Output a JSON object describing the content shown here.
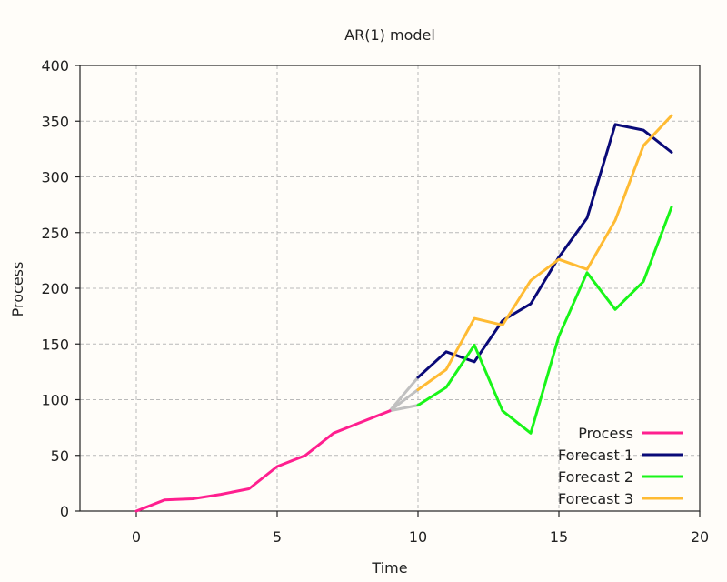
{
  "chart_data": {
    "type": "line",
    "title": "AR(1) model",
    "xlabel": "Time",
    "ylabel": "Process",
    "xlim": [
      -2,
      20
    ],
    "ylim": [
      0,
      400
    ],
    "xticks": [
      0,
      5,
      10,
      15,
      20
    ],
    "yticks": [
      0,
      50,
      100,
      150,
      200,
      250,
      300,
      350,
      400
    ],
    "grid": true,
    "legend_position": "bottom-right",
    "series": [
      {
        "name": "Process",
        "color": "#ff1f8f",
        "x": [
          0,
          1,
          2,
          3,
          4,
          5,
          6,
          7,
          8,
          9
        ],
        "y": [
          0,
          10,
          11,
          15,
          20,
          40,
          50,
          70,
          80,
          90
        ]
      },
      {
        "name": "Forecast 1",
        "color": "#0a0a78",
        "x": [
          10,
          11,
          12,
          13,
          14,
          15,
          16,
          17,
          18,
          19
        ],
        "y": [
          120,
          143,
          134,
          171,
          186,
          228,
          263,
          347,
          342,
          322
        ]
      },
      {
        "name": "Forecast 2",
        "color": "#19f519",
        "x": [
          10,
          11,
          12,
          13,
          14,
          15,
          16,
          17,
          18,
          19
        ],
        "y": [
          95,
          111,
          149,
          90,
          70,
          157,
          214,
          181,
          206,
          273
        ]
      },
      {
        "name": "Forecast 3",
        "color": "#ffbb33",
        "x": [
          10,
          11,
          12,
          13,
          14,
          15,
          16,
          17,
          18,
          19
        ],
        "y": [
          109,
          127,
          173,
          167,
          207,
          226,
          217,
          261,
          328,
          355
        ]
      }
    ],
    "connectors": {
      "color": "#c0c0c0",
      "from": [
        9,
        90
      ],
      "to": [
        [
          10,
          120
        ],
        [
          10,
          95
        ],
        [
          10,
          109
        ]
      ]
    }
  }
}
